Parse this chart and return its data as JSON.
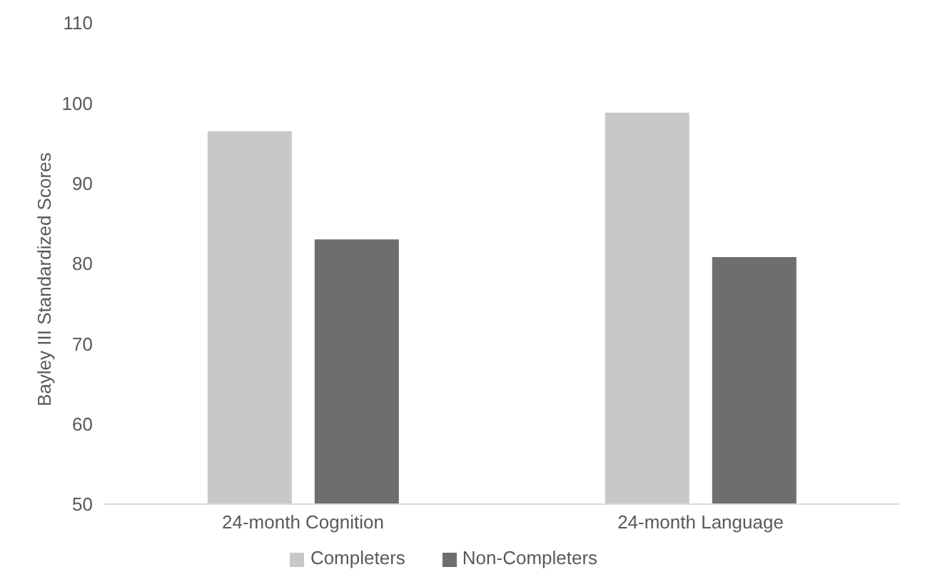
{
  "chart_data": {
    "type": "bar",
    "ylabel": "Bayley III Standardized Scores",
    "categories": [
      "24-month Cognition",
      "24-month Language"
    ],
    "series": [
      {
        "name": "Completers",
        "color": "#c8c8c8",
        "values": [
          96.5,
          98.8
        ]
      },
      {
        "name": "Non-Completers",
        "color": "#6e6e6e",
        "values": [
          83,
          80.8
        ]
      }
    ],
    "ylim": [
      50,
      110
    ],
    "yticks": [
      50,
      60,
      70,
      80,
      90,
      100,
      110
    ],
    "grid": false,
    "legend": "bottom"
  }
}
